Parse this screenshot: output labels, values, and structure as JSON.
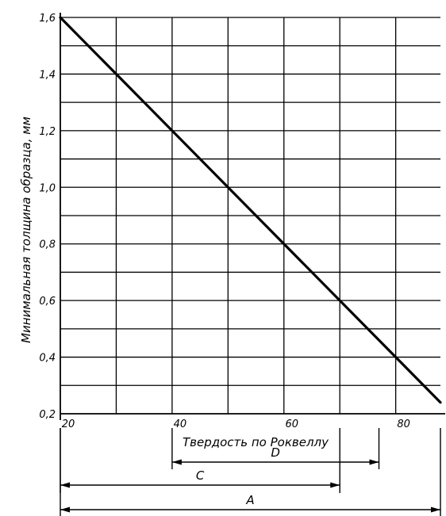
{
  "chart_data": {
    "type": "line",
    "xlabel": "Твердость по Роквеллу",
    "ylabel": "Минимальная толщина образца, мм",
    "xlim": [
      20,
      88
    ],
    "ylim": [
      0.2,
      1.6
    ],
    "x_ticks": [
      20,
      40,
      60,
      80
    ],
    "x_tick_labels": [
      "20",
      "40",
      "60",
      "80"
    ],
    "y_ticks": [
      0.2,
      0.4,
      0.6,
      0.8,
      1.0,
      1.2,
      1.4,
      1.6
    ],
    "y_tick_labels": [
      "0,2",
      "0,4",
      "0,6",
      "0,8",
      "1,0",
      "1,2",
      "1,4",
      "1,6"
    ],
    "grid": true,
    "x_grid_step": 10,
    "y_grid_step": 0.1,
    "series": [
      {
        "x": [
          20,
          88
        ],
        "y": [
          1.6,
          0.24
        ],
        "color": "#000000"
      }
    ],
    "ranges": [
      {
        "label": "D",
        "from": 40,
        "to": 77
      },
      {
        "label": "C",
        "from": 20,
        "to": 70
      },
      {
        "label": "A",
        "from": 20,
        "to": 88
      }
    ]
  }
}
